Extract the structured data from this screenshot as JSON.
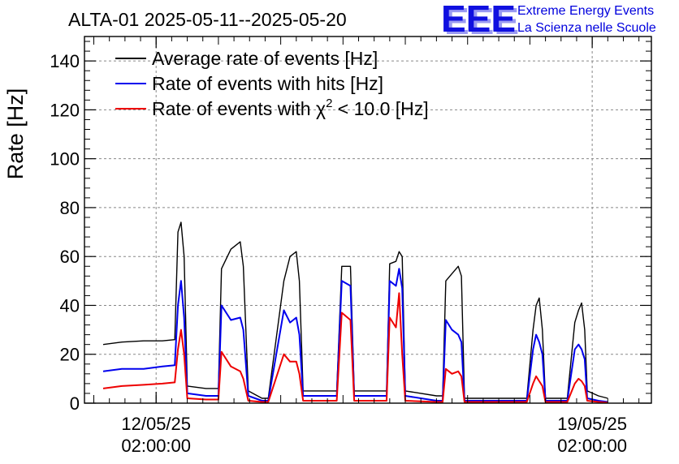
{
  "header": {
    "title": "ALTA-01 2025-05-11--2025-05-20",
    "logo": "EEE",
    "brand_line1": "Extreme Energy Events",
    "brand_line2": "La Scienza nelle Scuole"
  },
  "chart_data": {
    "type": "line",
    "title": "ALTA-01 2025-05-11--2025-05-20",
    "ylabel": "Rate [Hz]",
    "xlabel": "",
    "ylim": [
      0,
      150
    ],
    "yticks": [
      0,
      20,
      40,
      60,
      80,
      100,
      120,
      140
    ],
    "grid": true,
    "legend_position": "top-left",
    "xlim_days": [
      -1.15,
      7.95
    ],
    "xticks": [
      {
        "day": 0,
        "line1": "12/05/25",
        "line2": "02:00:00"
      },
      {
        "day": 7,
        "line1": "19/05/25",
        "line2": "02:00:00"
      }
    ],
    "x_origin": "12/05/25 02:00:00",
    "x_unit": "days",
    "colors": {
      "average": "#000000",
      "hits": "#0000ee",
      "chi2": "#ee0000"
    },
    "series": [
      {
        "key": "average",
        "name": "Average rate of events [Hz]",
        "points": [
          [
            -0.85,
            24
          ],
          [
            -0.55,
            25
          ],
          [
            -0.2,
            25.5
          ],
          [
            0.1,
            25.5
          ],
          [
            0.3,
            26
          ],
          [
            0.35,
            70
          ],
          [
            0.4,
            74
          ],
          [
            0.45,
            60
          ],
          [
            0.5,
            7
          ],
          [
            0.8,
            6
          ],
          [
            1.0,
            6
          ],
          [
            1.05,
            55
          ],
          [
            1.2,
            63
          ],
          [
            1.35,
            66
          ],
          [
            1.4,
            56
          ],
          [
            1.48,
            5
          ],
          [
            1.7,
            2
          ],
          [
            1.8,
            2
          ],
          [
            2.05,
            50
          ],
          [
            2.15,
            60
          ],
          [
            2.25,
            62
          ],
          [
            2.3,
            50
          ],
          [
            2.36,
            5
          ],
          [
            2.9,
            5
          ],
          [
            2.98,
            56
          ],
          [
            3.12,
            56
          ],
          [
            3.18,
            5
          ],
          [
            3.7,
            5
          ],
          [
            3.75,
            57
          ],
          [
            3.85,
            58
          ],
          [
            3.9,
            62
          ],
          [
            3.95,
            60
          ],
          [
            4.0,
            5
          ],
          [
            4.5,
            3
          ],
          [
            4.6,
            3
          ],
          [
            4.65,
            50
          ],
          [
            4.75,
            53
          ],
          [
            4.85,
            56
          ],
          [
            4.9,
            52
          ],
          [
            4.95,
            2
          ],
          [
            5.5,
            2
          ],
          [
            5.95,
            2
          ],
          [
            6.05,
            30
          ],
          [
            6.1,
            40
          ],
          [
            6.15,
            43
          ],
          [
            6.2,
            30
          ],
          [
            6.25,
            2
          ],
          [
            6.6,
            2
          ],
          [
            6.72,
            33
          ],
          [
            6.78,
            38
          ],
          [
            6.83,
            41
          ],
          [
            6.88,
            30
          ],
          [
            6.92,
            5
          ],
          [
            7.1,
            3
          ],
          [
            7.25,
            2
          ]
        ]
      },
      {
        "key": "hits",
        "name": "Rate of events with hits [Hz]",
        "points": [
          [
            -0.85,
            13
          ],
          [
            -0.55,
            14
          ],
          [
            -0.2,
            14
          ],
          [
            0.1,
            15
          ],
          [
            0.3,
            15.5
          ],
          [
            0.35,
            40
          ],
          [
            0.4,
            50
          ],
          [
            0.45,
            35
          ],
          [
            0.5,
            4
          ],
          [
            0.8,
            3
          ],
          [
            1.0,
            3
          ],
          [
            1.05,
            40
          ],
          [
            1.2,
            34
          ],
          [
            1.35,
            35
          ],
          [
            1.4,
            30
          ],
          [
            1.48,
            3
          ],
          [
            1.7,
            1
          ],
          [
            1.8,
            1
          ],
          [
            2.05,
            38
          ],
          [
            2.15,
            33
          ],
          [
            2.25,
            35
          ],
          [
            2.3,
            28
          ],
          [
            2.36,
            3
          ],
          [
            2.9,
            3
          ],
          [
            2.98,
            50
          ],
          [
            3.12,
            48
          ],
          [
            3.18,
            3
          ],
          [
            3.7,
            3
          ],
          [
            3.75,
            50
          ],
          [
            3.85,
            48
          ],
          [
            3.9,
            55
          ],
          [
            3.95,
            47
          ],
          [
            4.0,
            3
          ],
          [
            4.5,
            1
          ],
          [
            4.6,
            1
          ],
          [
            4.65,
            34
          ],
          [
            4.75,
            30
          ],
          [
            4.85,
            28
          ],
          [
            4.9,
            25
          ],
          [
            4.95,
            1
          ],
          [
            5.5,
            1
          ],
          [
            5.95,
            1
          ],
          [
            6.05,
            22
          ],
          [
            6.1,
            28
          ],
          [
            6.15,
            25
          ],
          [
            6.2,
            20
          ],
          [
            6.25,
            1
          ],
          [
            6.6,
            1
          ],
          [
            6.72,
            22
          ],
          [
            6.78,
            24
          ],
          [
            6.83,
            22
          ],
          [
            6.88,
            18
          ],
          [
            6.92,
            2
          ],
          [
            7.1,
            1
          ],
          [
            7.25,
            0.5
          ]
        ]
      },
      {
        "key": "chi2",
        "name": "Rate of events with χ² < 10.0 [Hz]",
        "points": [
          [
            -0.85,
            6
          ],
          [
            -0.55,
            7
          ],
          [
            -0.2,
            7.5
          ],
          [
            0.1,
            8
          ],
          [
            0.3,
            8.5
          ],
          [
            0.35,
            22
          ],
          [
            0.4,
            30
          ],
          [
            0.45,
            20
          ],
          [
            0.5,
            2
          ],
          [
            0.8,
            1.5
          ],
          [
            1.0,
            1.5
          ],
          [
            1.05,
            21
          ],
          [
            1.2,
            15
          ],
          [
            1.35,
            13
          ],
          [
            1.4,
            10
          ],
          [
            1.48,
            1
          ],
          [
            1.7,
            0.5
          ],
          [
            1.8,
            0.5
          ],
          [
            2.05,
            20
          ],
          [
            2.15,
            17
          ],
          [
            2.25,
            17
          ],
          [
            2.3,
            12
          ],
          [
            2.36,
            1
          ],
          [
            2.9,
            1
          ],
          [
            2.98,
            37
          ],
          [
            3.12,
            34
          ],
          [
            3.18,
            1
          ],
          [
            3.7,
            1
          ],
          [
            3.75,
            35
          ],
          [
            3.85,
            31
          ],
          [
            3.9,
            45
          ],
          [
            3.95,
            20
          ],
          [
            4.0,
            1
          ],
          [
            4.5,
            0.5
          ],
          [
            4.6,
            0.5
          ],
          [
            4.65,
            14
          ],
          [
            4.75,
            12
          ],
          [
            4.85,
            13
          ],
          [
            4.9,
            11
          ],
          [
            4.95,
            0.5
          ],
          [
            5.5,
            0.5
          ],
          [
            5.95,
            0.5
          ],
          [
            6.05,
            8
          ],
          [
            6.1,
            11
          ],
          [
            6.15,
            9
          ],
          [
            6.2,
            7
          ],
          [
            6.25,
            0.5
          ],
          [
            6.6,
            0.5
          ],
          [
            6.72,
            8
          ],
          [
            6.78,
            10
          ],
          [
            6.83,
            9
          ],
          [
            6.88,
            7
          ],
          [
            6.92,
            1
          ],
          [
            7.1,
            0.5
          ],
          [
            7.25,
            0.2
          ]
        ]
      }
    ]
  }
}
